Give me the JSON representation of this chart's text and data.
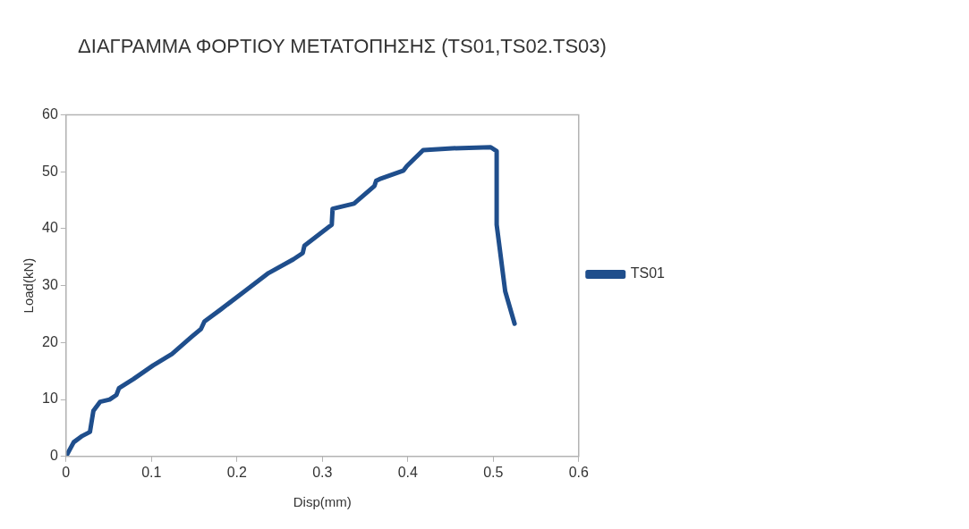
{
  "chart_data": {
    "type": "line",
    "title": "ΔΙΑΓΡΑΜΜΑ ΦΟΡΤΙΟΥ ΜΕΤΑΤΟΠΗΣΗΣ (TS01,TS02.TS03)",
    "xlabel": "Disp(mm)",
    "ylabel": "Load(kN)",
    "xlim": [
      0,
      0.6
    ],
    "xticks": [
      0,
      0.1,
      0.2,
      0.3,
      0.4,
      0.5,
      0.6
    ],
    "ylim": [
      0,
      60
    ],
    "yticks": [
      0,
      10,
      20,
      30,
      40,
      50,
      60
    ],
    "grid": false,
    "legend": "right",
    "marker": "none",
    "line_style": "solid",
    "series": [
      {
        "name": "TS01",
        "color": "#1f4e8c",
        "x": [
          0,
          0.009,
          0.019,
          0.028,
          0.032,
          0.04,
          0.051,
          0.059,
          0.062,
          0.079,
          0.102,
          0.124,
          0.147,
          0.158,
          0.162,
          0.181,
          0.209,
          0.237,
          0.266,
          0.277,
          0.279,
          0.311,
          0.312,
          0.337,
          0.361,
          0.363,
          0.367,
          0.395,
          0.399,
          0.418,
          0.452,
          0.497,
          0.504,
          0.504,
          0.514,
          0.525
        ],
        "values": [
          0,
          2.5,
          3.6,
          4.3,
          8,
          9.6,
          10,
          10.8,
          12,
          13.6,
          16,
          18,
          21,
          22.4,
          23.7,
          25.8,
          29,
          32.2,
          34.6,
          35.7,
          37,
          40.7,
          43.5,
          44.4,
          47.5,
          48.4,
          48.7,
          50.2,
          51,
          53.8,
          54.1,
          54.3,
          53.6,
          40.7,
          29,
          23.3
        ]
      }
    ]
  }
}
